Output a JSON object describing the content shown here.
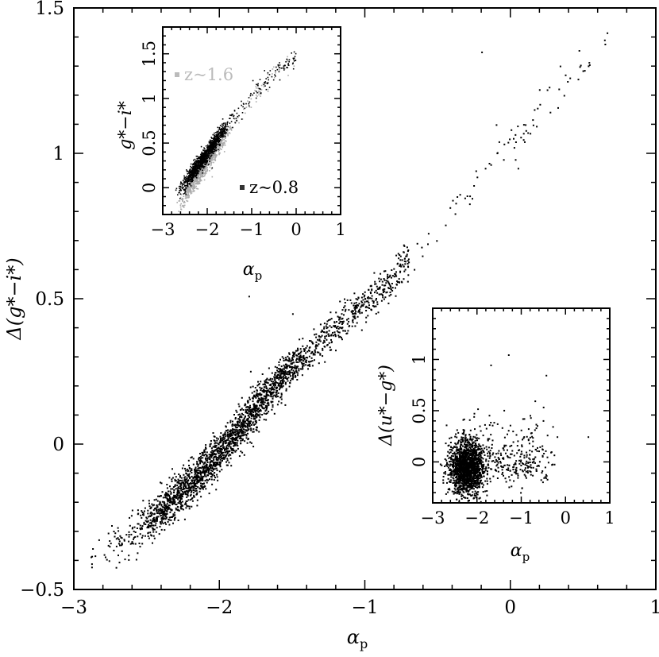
{
  "chart_data": [
    {
      "type": "scatter",
      "panel": "main",
      "xlabel": "α",
      "xlabel_sub": "p",
      "ylabel": "Δ(g*−i*)",
      "xlim": [
        -3,
        1
      ],
      "ylim": [
        -0.5,
        1.5
      ],
      "xticks": [
        -3,
        -2,
        -1,
        0,
        1
      ],
      "xtick_labels": [
        "−3",
        "−2",
        "−1",
        "0",
        "1"
      ],
      "yticks": [
        -0.5,
        0,
        0.5,
        1,
        1.5
      ],
      "ytick_labels": [
        "−0.5",
        "0",
        "0.5",
        "1",
        "1.5"
      ],
      "grid": false,
      "series": [
        {
          "color": "#000000",
          "trend": [
            [
              -2.85,
              -0.39
            ],
            [
              -2.4,
              -0.23
            ],
            [
              -2.0,
              -0.03
            ],
            [
              -1.6,
              0.22
            ],
            [
              -1.2,
              0.4
            ],
            [
              -0.8,
              0.58
            ],
            [
              -0.4,
              0.8
            ],
            [
              0.0,
              1.05
            ],
            [
              0.5,
              1.3
            ],
            [
              0.75,
              1.45
            ]
          ],
          "outliers": [
            [
              -0.2,
              1.35
            ],
            [
              0.25,
              1.22
            ],
            [
              0.2,
              1.17
            ],
            [
              -0.1,
              1.1
            ],
            [
              0.1,
              1.1
            ],
            [
              -0.4,
              0.84
            ],
            [
              -0.35,
              0.86
            ],
            [
              -0.05,
              0.98
            ],
            [
              0.05,
              0.95
            ],
            [
              -0.3,
              0.12
            ],
            [
              -0.5,
              -0.02
            ],
            [
              -1.8,
              0.51
            ],
            [
              -1.5,
              0.45
            ],
            [
              -2.55,
              -0.35
            ],
            [
              -2.7,
              -0.38
            ]
          ]
        }
      ]
    },
    {
      "type": "scatter",
      "panel": "inset-top-left",
      "xlabel": "α",
      "xlabel_sub": "p",
      "ylabel": "g*−i*",
      "xlim": [
        -3,
        1
      ],
      "ylim": [
        -0.3,
        1.8
      ],
      "xticks": [
        -3,
        -2,
        -1,
        0,
        1
      ],
      "xtick_labels": [
        "−3",
        "−2",
        "−1",
        "0",
        "1"
      ],
      "yticks": [
        0,
        0.5,
        1,
        1.5
      ],
      "ytick_labels": [
        "0",
        "0.5",
        "1",
        "1.5"
      ],
      "legend_location": "inside",
      "series": [
        {
          "name": "z~1.6",
          "color": "#aaaaaa",
          "trend": [
            [
              -2.6,
              -0.15
            ],
            [
              -2.0,
              0.3
            ],
            [
              -1.5,
              0.65
            ],
            [
              -1.0,
              1.0
            ],
            [
              -0.5,
              1.3
            ],
            [
              0.0,
              1.45
            ]
          ]
        },
        {
          "name": "z~0.8",
          "color": "#000000",
          "trend": [
            [
              -2.6,
              0.0
            ],
            [
              -2.0,
              0.4
            ],
            [
              -1.5,
              0.75
            ],
            [
              -1.0,
              1.05
            ],
            [
              -0.5,
              1.3
            ],
            [
              0.0,
              1.45
            ]
          ]
        }
      ]
    },
    {
      "type": "scatter",
      "panel": "inset-bottom-right",
      "xlabel": "α",
      "xlabel_sub": "p",
      "ylabel": "Δ(u*−g*)",
      "xlim": [
        -3,
        1
      ],
      "ylim": [
        -0.4,
        1.5
      ],
      "xticks": [
        -3,
        -2,
        -1,
        0,
        1
      ],
      "xtick_labels": [
        "−3",
        "−2",
        "−1",
        "0",
        "1"
      ],
      "yticks": [
        0,
        0.5,
        1
      ],
      "ytick_labels": [
        "0",
        "0.5",
        "1"
      ],
      "series": [
        {
          "color": "#000000",
          "center": [
            -2.25,
            -0.05
          ],
          "spread": [
            0.35,
            0.13
          ],
          "outliers": [
            [
              -1.3,
              1.05
            ],
            [
              -0.45,
              0.85
            ],
            [
              -0.7,
              0.6
            ],
            [
              -0.2,
              0.25
            ],
            [
              -0.5,
              -0.15
            ],
            [
              -1.0,
              -0.25
            ],
            [
              0.5,
              0.25
            ],
            [
              -1.7,
              0.95
            ],
            [
              -0.9,
              0.1
            ]
          ]
        }
      ]
    }
  ]
}
